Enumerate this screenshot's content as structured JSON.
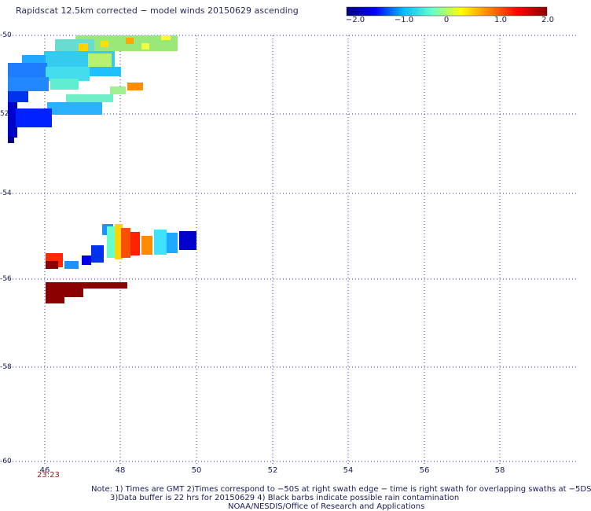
{
  "title": "Rapidscat 12.5km corrected − model winds 20150629 ascending",
  "colorbar": {
    "labels": [
      "−2.0",
      "−1.0",
      "0",
      "1.0",
      "2.0"
    ],
    "range": [
      -2.0,
      2.0
    ],
    "stops": [
      "#00007f",
      "#0000ff",
      "#00bfff",
      "#66ffcc",
      "#ffff00",
      "#ff8000",
      "#ff0000",
      "#8b0000"
    ]
  },
  "axes": {
    "lat_labels": [
      "-50",
      "52",
      "-54",
      "-56",
      "-58",
      "-60"
    ],
    "lon_labels": [
      "46",
      "48",
      "50",
      "52",
      "54",
      "56",
      "58"
    ]
  },
  "time_label": "23:23",
  "notes": [
    "Note: 1) Times are GMT 2)Times correspond to −50S at right swath edge − time is right swath for overlapping swaths at −5DS",
    "3)Data buffer is 22 hrs for 20150629 4) Black barbs indicate possible rain contamination",
    "NOAA/NESDIS/Office of Research and Applications"
  ]
}
